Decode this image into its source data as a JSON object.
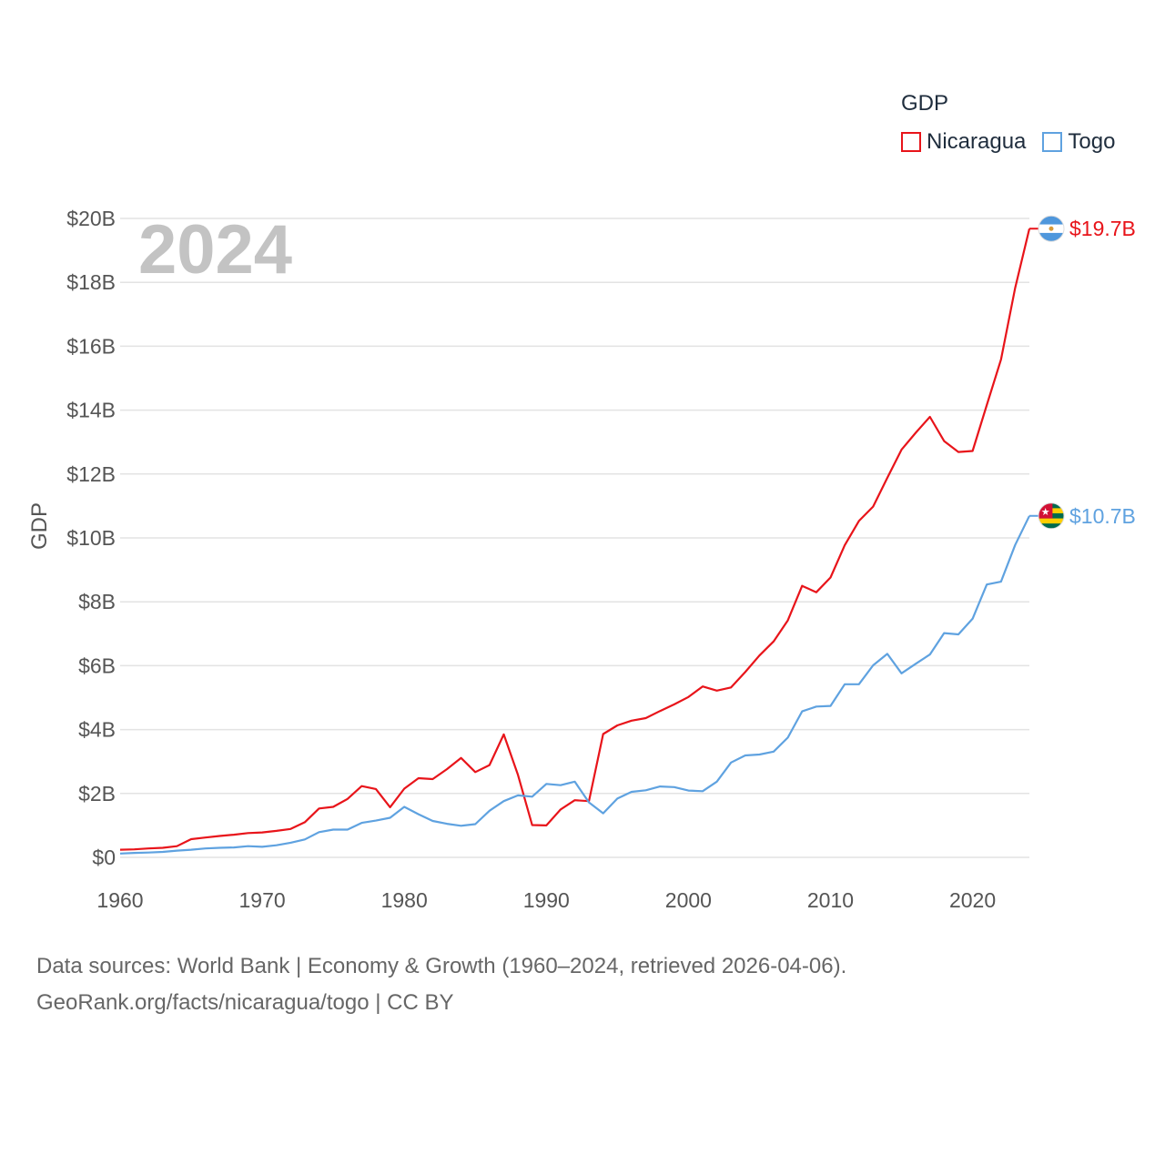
{
  "chart_data": {
    "type": "line",
    "title": "",
    "legend_title": "GDP",
    "ylabel": "GDP",
    "xlabel": "",
    "year_label": "2024",
    "xlim": [
      1960,
      2024
    ],
    "ylim": [
      0,
      20000000000
    ],
    "x_ticks": [
      1960,
      1970,
      1980,
      1990,
      2000,
      2010,
      2020
    ],
    "y_ticks": [
      {
        "value": 0,
        "label": "$0"
      },
      {
        "value": 2000000000,
        "label": "$2B"
      },
      {
        "value": 4000000000,
        "label": "$4B"
      },
      {
        "value": 6000000000,
        "label": "$6B"
      },
      {
        "value": 8000000000,
        "label": "$8B"
      },
      {
        "value": 10000000000,
        "label": "$10B"
      },
      {
        "value": 12000000000,
        "label": "$12B"
      },
      {
        "value": 14000000000,
        "label": "$14B"
      },
      {
        "value": 16000000000,
        "label": "$16B"
      },
      {
        "value": 18000000000,
        "label": "$18B"
      },
      {
        "value": 20000000000,
        "label": "$20B"
      }
    ],
    "x": [
      1960,
      1961,
      1962,
      1963,
      1964,
      1965,
      1966,
      1967,
      1968,
      1969,
      1970,
      1971,
      1972,
      1973,
      1974,
      1975,
      1976,
      1977,
      1978,
      1979,
      1980,
      1981,
      1982,
      1983,
      1984,
      1985,
      1986,
      1987,
      1988,
      1989,
      1990,
      1991,
      1992,
      1993,
      1994,
      1995,
      1996,
      1997,
      1998,
      1999,
      2000,
      2001,
      2002,
      2003,
      2004,
      2005,
      2006,
      2007,
      2008,
      2009,
      2010,
      2011,
      2012,
      2013,
      2014,
      2015,
      2016,
      2017,
      2018,
      2019,
      2020,
      2021,
      2022,
      2023,
      2024
    ],
    "series": [
      {
        "name": "Nicaragua",
        "color": "#e8141a",
        "end_label": "$19.7B",
        "values": [
          0.24,
          0.25,
          0.28,
          0.3,
          0.35,
          0.57,
          0.62,
          0.67,
          0.71,
          0.76,
          0.78,
          0.83,
          0.89,
          1.1,
          1.53,
          1.58,
          1.83,
          2.23,
          2.14,
          1.57,
          2.15,
          2.48,
          2.45,
          2.76,
          3.11,
          2.67,
          2.89,
          3.85,
          2.58,
          1.01,
          1.0,
          1.5,
          1.79,
          1.76,
          3.86,
          4.13,
          4.28,
          4.36,
          4.58,
          4.79,
          5.02,
          5.35,
          5.22,
          5.32,
          5.8,
          6.32,
          6.76,
          7.42,
          8.5,
          8.3,
          8.76,
          9.77,
          10.53,
          10.98,
          11.88,
          12.76,
          13.29,
          13.79,
          13.03,
          12.69,
          12.72,
          14.16,
          15.58,
          17.83,
          19.68
        ]
      },
      {
        "name": "Togo",
        "color": "#5fa2e0",
        "end_label": "$10.7B",
        "values": [
          0.12,
          0.14,
          0.15,
          0.17,
          0.21,
          0.24,
          0.28,
          0.3,
          0.31,
          0.35,
          0.33,
          0.38,
          0.46,
          0.56,
          0.79,
          0.87,
          0.87,
          1.08,
          1.15,
          1.24,
          1.58,
          1.35,
          1.14,
          1.05,
          0.99,
          1.04,
          1.46,
          1.76,
          1.94,
          1.9,
          2.3,
          2.26,
          2.37,
          1.72,
          1.38,
          1.84,
          2.05,
          2.1,
          2.22,
          2.2,
          2.09,
          2.07,
          2.37,
          2.97,
          3.19,
          3.22,
          3.31,
          3.75,
          4.57,
          4.72,
          4.74,
          5.42,
          5.42,
          6.01,
          6.37,
          5.76,
          6.06,
          6.35,
          7.02,
          6.98,
          7.47,
          8.54,
          8.63,
          9.78,
          10.69
        ]
      }
    ],
    "legend_position": "top-right"
  },
  "footer": {
    "line1": "Data sources: World Bank | Economy & Growth (1960–2024, retrieved 2026-04-06).",
    "line2": "GeoRank.org/facts/nicaragua/togo | CC BY"
  },
  "flags": {
    "nicaragua": "nicaragua-flag-icon",
    "togo": "togo-flag-icon"
  },
  "colors": {
    "grid": "#e3e3e3",
    "axis_text": "#555555",
    "watermark": "#c3c3c3"
  }
}
